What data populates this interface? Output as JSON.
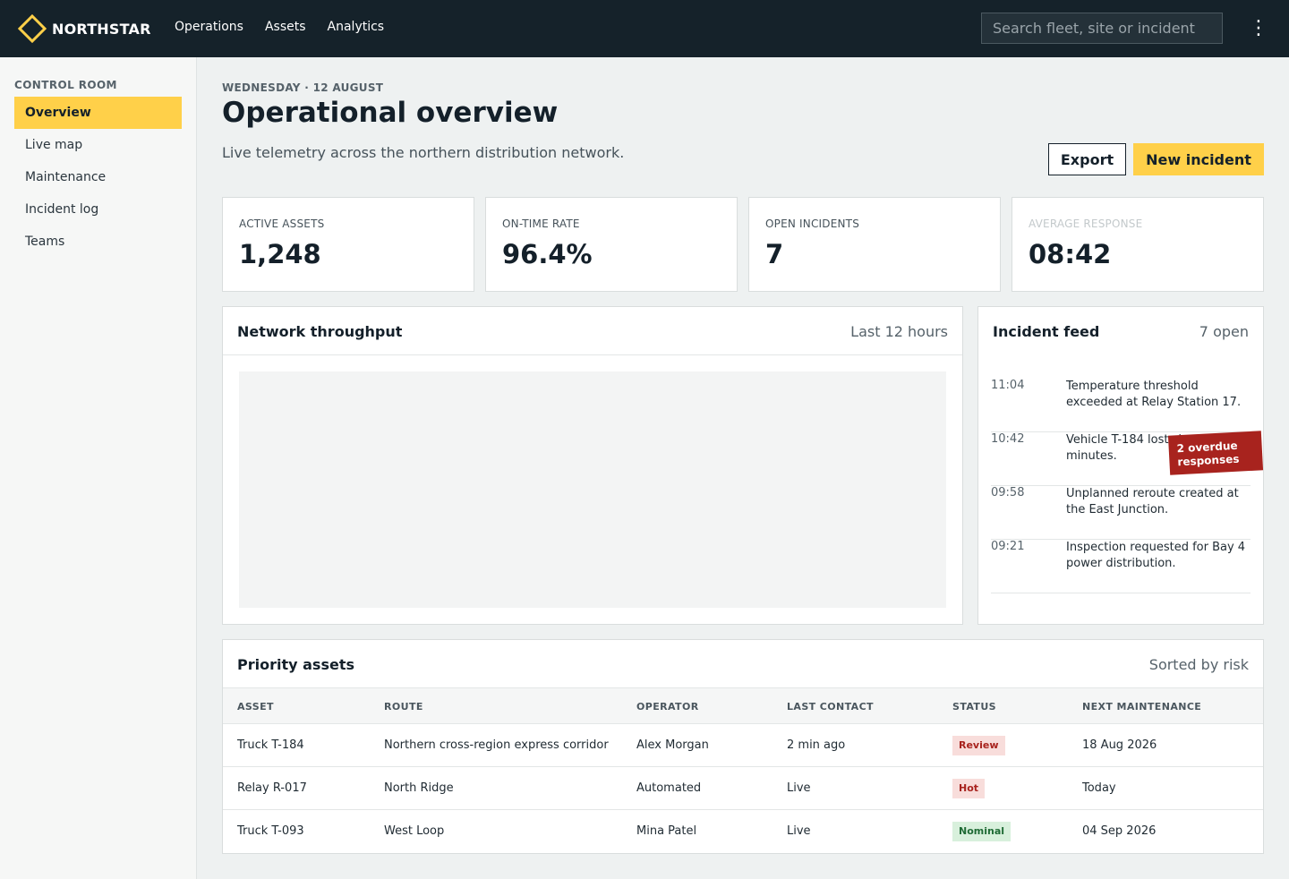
{
  "app": {
    "brand_name": "NORTHSTAR",
    "brand_icon": "diamond-logo-icon",
    "accent_color": "#ffd049",
    "topbar_color": "#15222a"
  },
  "topnav": {
    "items": [
      "Operations",
      "Assets",
      "Analytics"
    ],
    "search_placeholder": "Search fleet, site or incident",
    "menu_icon": "kebab-menu-icon"
  },
  "sidebar": {
    "section_title": "CONTROL ROOM",
    "items": [
      {
        "label": "Overview",
        "active": true
      },
      {
        "label": "Live map",
        "active": false
      },
      {
        "label": "Maintenance",
        "active": false
      },
      {
        "label": "Incident log",
        "active": false
      },
      {
        "label": "Teams",
        "active": false
      }
    ]
  },
  "header": {
    "date": "WEDNESDAY · 12 AUGUST",
    "title": "Operational overview",
    "subtitle": "Live telemetry across the northern distribution network.",
    "export_label": "Export",
    "new_incident_label": "New incident"
  },
  "kpis": [
    {
      "label": "ACTIVE ASSETS",
      "value": "1,248"
    },
    {
      "label": "ON-TIME RATE",
      "value": "96.4%"
    },
    {
      "label": "OPEN INCIDENTS",
      "value": "7"
    },
    {
      "label": "AVERAGE RESPONSE",
      "value": "08:42"
    }
  ],
  "throughput": {
    "title": "Network throughput",
    "meta": "Last 12 hours"
  },
  "incident_feed": {
    "title": "Incident feed",
    "meta": "7 open",
    "items": [
      {
        "time": "11:04",
        "text": "Temperature threshold exceeded at Relay Station 17."
      },
      {
        "time": "10:42",
        "text": "Vehicle T-184 lost signal for six minutes."
      },
      {
        "time": "09:58",
        "text": "Unplanned reroute created at the East Junction."
      },
      {
        "time": "09:21",
        "text": "Inspection requested for Bay 4 power distribution."
      }
    ],
    "overdue_badge": "2 overdue responses"
  },
  "priority_assets": {
    "title": "Priority assets",
    "meta": "Sorted by risk",
    "columns": [
      "ASSET",
      "ROUTE",
      "OPERATOR",
      "LAST CONTACT",
      "STATUS",
      "NEXT MAINTENANCE"
    ],
    "rows": [
      {
        "asset": "Truck T-184",
        "route": "Northern cross-region express corridor",
        "operator": "Alex Morgan",
        "last_contact": "2 min ago",
        "status": "Review",
        "next_maintenance": "18 Aug 2026"
      },
      {
        "asset": "Relay R-017",
        "route": "North Ridge",
        "operator": "Automated",
        "last_contact": "Live",
        "status": "Hot",
        "next_maintenance": "Today"
      },
      {
        "asset": "Truck T-093",
        "route": "West Loop",
        "operator": "Mina Patel",
        "last_contact": "Live",
        "status": "Nominal",
        "next_maintenance": "04 Sep 2026"
      }
    ]
  }
}
